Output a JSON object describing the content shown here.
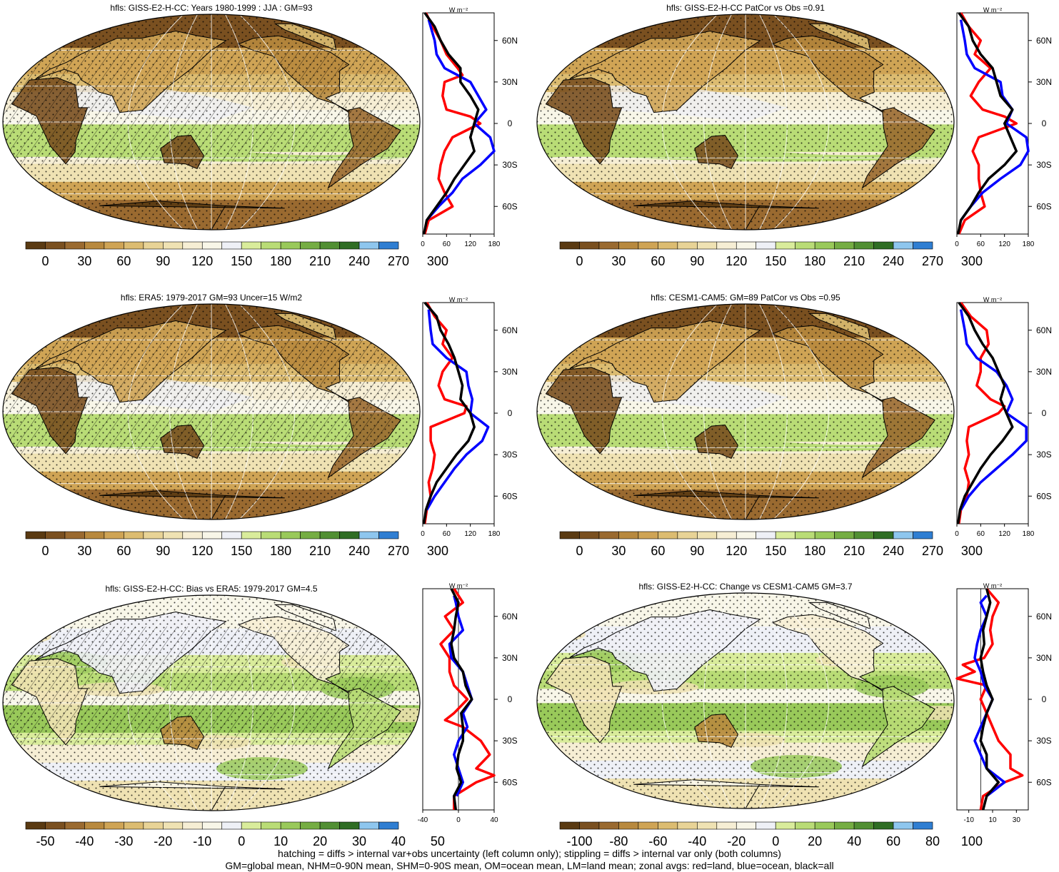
{
  "colors": {
    "abs_scale": [
      "#5a3a12",
      "#7a5020",
      "#9a6a30",
      "#b8893e",
      "#cfa455",
      "#dcbc71",
      "#e8d396",
      "#efe2b3",
      "#f6eed4",
      "#f8f6e8",
      "#eef0f6",
      "#d9ec9b",
      "#b9dc76",
      "#99c95a",
      "#75ad43",
      "#518f33",
      "#2f6d24",
      "#8ec6ee",
      "#2f7ed2"
    ],
    "diff_scale": [
      "#5a3a12",
      "#7a5020",
      "#9a6a30",
      "#b8893e",
      "#cfa455",
      "#dcbc71",
      "#e8d396",
      "#efe2b3",
      "#f6eed4",
      "#f8f6e8",
      "#eef0f6",
      "#d9ec9b",
      "#b9dc76",
      "#99c95a",
      "#75ad43",
      "#518f33",
      "#2f6d24",
      "#8ec6ee",
      "#2f7ed2"
    ],
    "land": "#ff0000",
    "ocean": "#0000ff",
    "all": "#000000"
  },
  "panels": [
    {
      "title": "hfls: GISS-E2-H-CC: Years 1980-1999 : JJA : GM=93",
      "hatch": true,
      "stipple": true,
      "bias": 0,
      "colorbar_labels": [
        "0",
        "30",
        "60",
        "90",
        "120",
        "150",
        "180",
        "210",
        "240",
        "270",
        "300"
      ],
      "zonal": {
        "unit": "W m⁻²",
        "xticks": [
          "0",
          "60",
          "120",
          "180"
        ],
        "xlim": [
          0,
          180
        ],
        "yticks": [
          "60N",
          "30N",
          "0",
          "30S",
          "60S"
        ],
        "ylim": [
          -80,
          80
        ],
        "land": {
          "lat": [
            80,
            70,
            60,
            50,
            40,
            35,
            30,
            20,
            10,
            5,
            0,
            -10,
            -20,
            -30,
            -40,
            -50,
            -60,
            -70,
            -80
          ],
          "val": [
            8,
            25,
            45,
            60,
            88,
            100,
            55,
            50,
            60,
            120,
            145,
            75,
            55,
            45,
            40,
            55,
            75,
            15,
            5
          ]
        },
        "ocean": {
          "lat": [
            75,
            60,
            50,
            40,
            30,
            20,
            10,
            0,
            -10,
            -20,
            -30,
            -40,
            -50,
            -60,
            -70
          ],
          "val": [
            15,
            30,
            35,
            55,
            120,
            140,
            160,
            130,
            170,
            180,
            145,
            100,
            75,
            40,
            10
          ]
        },
        "all": {
          "lat": [
            80,
            70,
            60,
            50,
            40,
            30,
            20,
            10,
            0,
            -10,
            -20,
            -30,
            -40,
            -50,
            -60,
            -70,
            -80
          ],
          "val": [
            5,
            30,
            45,
            65,
            95,
            95,
            120,
            140,
            130,
            120,
            130,
            105,
            80,
            60,
            35,
            10,
            3
          ]
        }
      }
    },
    {
      "title": "hfls: GISS-E2-H-CC PatCor vs Obs =0.91",
      "hatch": false,
      "stipple": true,
      "bias": 0,
      "colorbar_labels": [
        "0",
        "30",
        "60",
        "90",
        "120",
        "150",
        "180",
        "210",
        "240",
        "270",
        "300"
      ],
      "zonal": {
        "unit": "W m⁻²",
        "xticks": [
          "0",
          "60",
          "120",
          "180"
        ],
        "xlim": [
          0,
          180
        ],
        "yticks": [
          "60N",
          "30N",
          "0",
          "30S",
          "60S"
        ],
        "ylim": [
          -80,
          80
        ],
        "land": {
          "lat": [
            80,
            70,
            60,
            50,
            40,
            30,
            20,
            10,
            5,
            0,
            -10,
            -20,
            -30,
            -40,
            -50,
            -60,
            -70,
            -80
          ],
          "val": [
            10,
            30,
            60,
            45,
            85,
            55,
            35,
            65,
            120,
            150,
            55,
            40,
            55,
            55,
            60,
            70,
            20,
            5
          ]
        },
        "ocean": {
          "lat": [
            75,
            60,
            50,
            40,
            30,
            20,
            10,
            0,
            -10,
            -20,
            -30,
            -40,
            -50,
            -60,
            -70
          ],
          "val": [
            10,
            20,
            25,
            45,
            110,
            115,
            140,
            125,
            175,
            180,
            160,
            110,
            65,
            35,
            10
          ]
        },
        "all": {
          "lat": [
            80,
            70,
            60,
            50,
            40,
            30,
            20,
            10,
            0,
            -10,
            -20,
            -30,
            -40,
            -50,
            -60,
            -70,
            -80
          ],
          "val": [
            5,
            30,
            40,
            60,
            90,
            100,
            110,
            140,
            120,
            135,
            150,
            120,
            80,
            55,
            35,
            10,
            3
          ]
        }
      }
    },
    {
      "title": "hfls: ERA5: 1979-2017 GM=93 Uncer=15 W/m2",
      "hatch": true,
      "stipple": true,
      "bias": -8,
      "colorbar_labels": [
        "0",
        "30",
        "60",
        "90",
        "120",
        "150",
        "180",
        "210",
        "240",
        "270",
        "300"
      ],
      "zonal": {
        "unit": "W m⁻²",
        "xticks": [
          "0",
          "60",
          "120",
          "180"
        ],
        "xlim": [
          0,
          180
        ],
        "yticks": [
          "60N",
          "30N",
          "0",
          "30S",
          "60S"
        ],
        "ylim": [
          -80,
          80
        ],
        "land": {
          "lat": [
            80,
            70,
            60,
            50,
            40,
            30,
            20,
            10,
            5,
            0,
            -10,
            -20,
            -30,
            -40,
            -50,
            -60,
            -70,
            -80
          ],
          "val": [
            10,
            30,
            60,
            50,
            75,
            50,
            40,
            55,
            110,
            105,
            20,
            20,
            30,
            25,
            15,
            20,
            10,
            5
          ]
        },
        "ocean": {
          "lat": [
            75,
            60,
            50,
            40,
            30,
            20,
            10,
            0,
            -10,
            -20,
            -30,
            -40,
            -50,
            -60,
            -70
          ],
          "val": [
            15,
            20,
            25,
            60,
            110,
            115,
            125,
            120,
            165,
            150,
            110,
            80,
            55,
            30,
            10
          ]
        },
        "all": {
          "lat": [
            80,
            70,
            60,
            50,
            40,
            30,
            20,
            10,
            0,
            -10,
            -20,
            -30,
            -40,
            -50,
            -60,
            -70,
            -80
          ],
          "val": [
            5,
            35,
            45,
            65,
            80,
            90,
            100,
            95,
            120,
            130,
            115,
            85,
            60,
            35,
            20,
            8,
            3
          ]
        }
      }
    },
    {
      "title": "hfls: CESM1-CAM5: GM=89 PatCor vs Obs =0.95",
      "hatch": false,
      "stipple": true,
      "bias": -4,
      "colorbar_labels": [
        "0",
        "30",
        "60",
        "90",
        "120",
        "150",
        "180",
        "210",
        "240",
        "270",
        "300"
      ],
      "zonal": {
        "unit": "W m⁻²",
        "xticks": [
          "0",
          "60",
          "120",
          "180"
        ],
        "xlim": [
          0,
          180
        ],
        "yticks": [
          "60N",
          "30N",
          "0",
          "30S",
          "60S"
        ],
        "ylim": [
          -80,
          80
        ],
        "land": {
          "lat": [
            80,
            70,
            60,
            50,
            40,
            30,
            20,
            10,
            5,
            0,
            -10,
            -20,
            -30,
            -40,
            -50,
            -60,
            -70,
            -80
          ],
          "val": [
            10,
            35,
            75,
            80,
            60,
            60,
            50,
            85,
            120,
            105,
            30,
            25,
            30,
            20,
            30,
            25,
            10,
            5
          ]
        },
        "ocean": {
          "lat": [
            75,
            60,
            50,
            40,
            30,
            20,
            10,
            0,
            -10,
            -20,
            -30,
            -40,
            -50,
            -60,
            -70
          ],
          "val": [
            10,
            20,
            25,
            50,
            100,
            125,
            140,
            125,
            175,
            175,
            140,
            100,
            60,
            30,
            10
          ]
        },
        "all": {
          "lat": [
            80,
            70,
            60,
            50,
            40,
            30,
            20,
            10,
            0,
            -10,
            -20,
            -30,
            -40,
            -50,
            -60,
            -70,
            -80
          ],
          "val": [
            5,
            30,
            45,
            65,
            90,
            105,
            120,
            110,
            125,
            140,
            115,
            85,
            60,
            40,
            20,
            8,
            3
          ]
        }
      }
    },
    {
      "title": "hfls: GISS-E2-H-CC: Bias vs ERA5: 1979-2017 GM=4.5",
      "hatch": true,
      "stipple": true,
      "bias": 0,
      "colorbar_labels": [
        "-50",
        "-40",
        "-30",
        "-20",
        "-10",
        "0",
        "10",
        "20",
        "30",
        "40",
        "50"
      ],
      "zonal": {
        "unit": "W m⁻²",
        "xticks": [
          "-40",
          "0",
          "40"
        ],
        "xlim": [
          -40,
          40
        ],
        "yticks": [
          "60N",
          "30N",
          "0",
          "30S",
          "60S"
        ],
        "ylim": [
          -80,
          80
        ],
        "land": {
          "lat": [
            80,
            70,
            60,
            55,
            50,
            40,
            30,
            20,
            10,
            0,
            -10,
            -15,
            -20,
            -30,
            -40,
            -50,
            -55,
            -60,
            -70,
            -80
          ],
          "val": [
            -5,
            5,
            -15,
            -10,
            -5,
            -20,
            -10,
            -10,
            -5,
            10,
            -5,
            -15,
            5,
            25,
            35,
            20,
            40,
            20,
            -5,
            -5
          ]
        },
        "ocean": {
          "lat": [
            75,
            70,
            60,
            50,
            40,
            30,
            20,
            10,
            0,
            -10,
            -20,
            -30,
            -40,
            -50,
            -60,
            -70
          ],
          "val": [
            -5,
            -3,
            0,
            5,
            -10,
            -8,
            5,
            10,
            15,
            5,
            10,
            0,
            -5,
            0,
            5,
            -2
          ]
        },
        "all": {
          "lat": [
            80,
            70,
            60,
            50,
            40,
            30,
            20,
            10,
            0,
            -10,
            -20,
            -30,
            -40,
            -50,
            -60,
            -70,
            -80
          ],
          "val": [
            -8,
            0,
            -3,
            -5,
            -8,
            -5,
            5,
            8,
            15,
            3,
            5,
            5,
            0,
            -2,
            3,
            -5,
            -3
          ]
        }
      }
    },
    {
      "title": "hfls: GISS-E2-H-CC: Change vs CESM1-CAM5 GM=3.7",
      "hatch": false,
      "stipple": true,
      "bias": 0,
      "colorbar_labels": [
        "-100",
        "-80",
        "-60",
        "-40",
        "-20",
        "0",
        "20",
        "40",
        "60",
        "80",
        "100"
      ],
      "zonal": {
        "unit": "W m⁻²",
        "xticks": [
          "-10",
          "10",
          "30"
        ],
        "xlim": [
          -20,
          40
        ],
        "yticks": [
          "60N",
          "30N",
          "0",
          "30S",
          "60S"
        ],
        "ylim": [
          -80,
          80
        ],
        "land": {
          "lat": [
            80,
            70,
            60,
            50,
            40,
            30,
            25,
            20,
            15,
            10,
            0,
            -10,
            -20,
            -30,
            -40,
            -50,
            -55,
            -60,
            -70,
            -80
          ],
          "val": [
            5,
            15,
            10,
            8,
            10,
            3,
            -15,
            -5,
            -20,
            5,
            0,
            5,
            10,
            15,
            25,
            25,
            35,
            20,
            2,
            0
          ]
        },
        "ocean": {
          "lat": [
            75,
            70,
            60,
            50,
            40,
            30,
            20,
            10,
            0,
            -10,
            -20,
            -30,
            -40,
            -50,
            -60,
            -70
          ],
          "val": [
            5,
            0,
            5,
            0,
            -3,
            -5,
            0,
            3,
            10,
            5,
            0,
            -5,
            0,
            5,
            20,
            5
          ]
        },
        "all": {
          "lat": [
            80,
            70,
            60,
            50,
            40,
            30,
            20,
            10,
            0,
            -10,
            -20,
            -30,
            -40,
            -50,
            -60,
            -70,
            -80
          ],
          "val": [
            5,
            8,
            5,
            2,
            3,
            0,
            2,
            5,
            10,
            5,
            2,
            0,
            5,
            5,
            15,
            5,
            2
          ]
        }
      }
    }
  ],
  "footer": {
    "line1": "hatching = diffs > internal var+obs uncertainty (left column only); stippling = diffs > internal var only (both columns)",
    "line2": "GM=global mean, NHM=0-90N mean, SHM=0-90S mean, OM=ocean mean, LM=land mean; zonal avgs: red=land, blue=ocean, black=all"
  }
}
